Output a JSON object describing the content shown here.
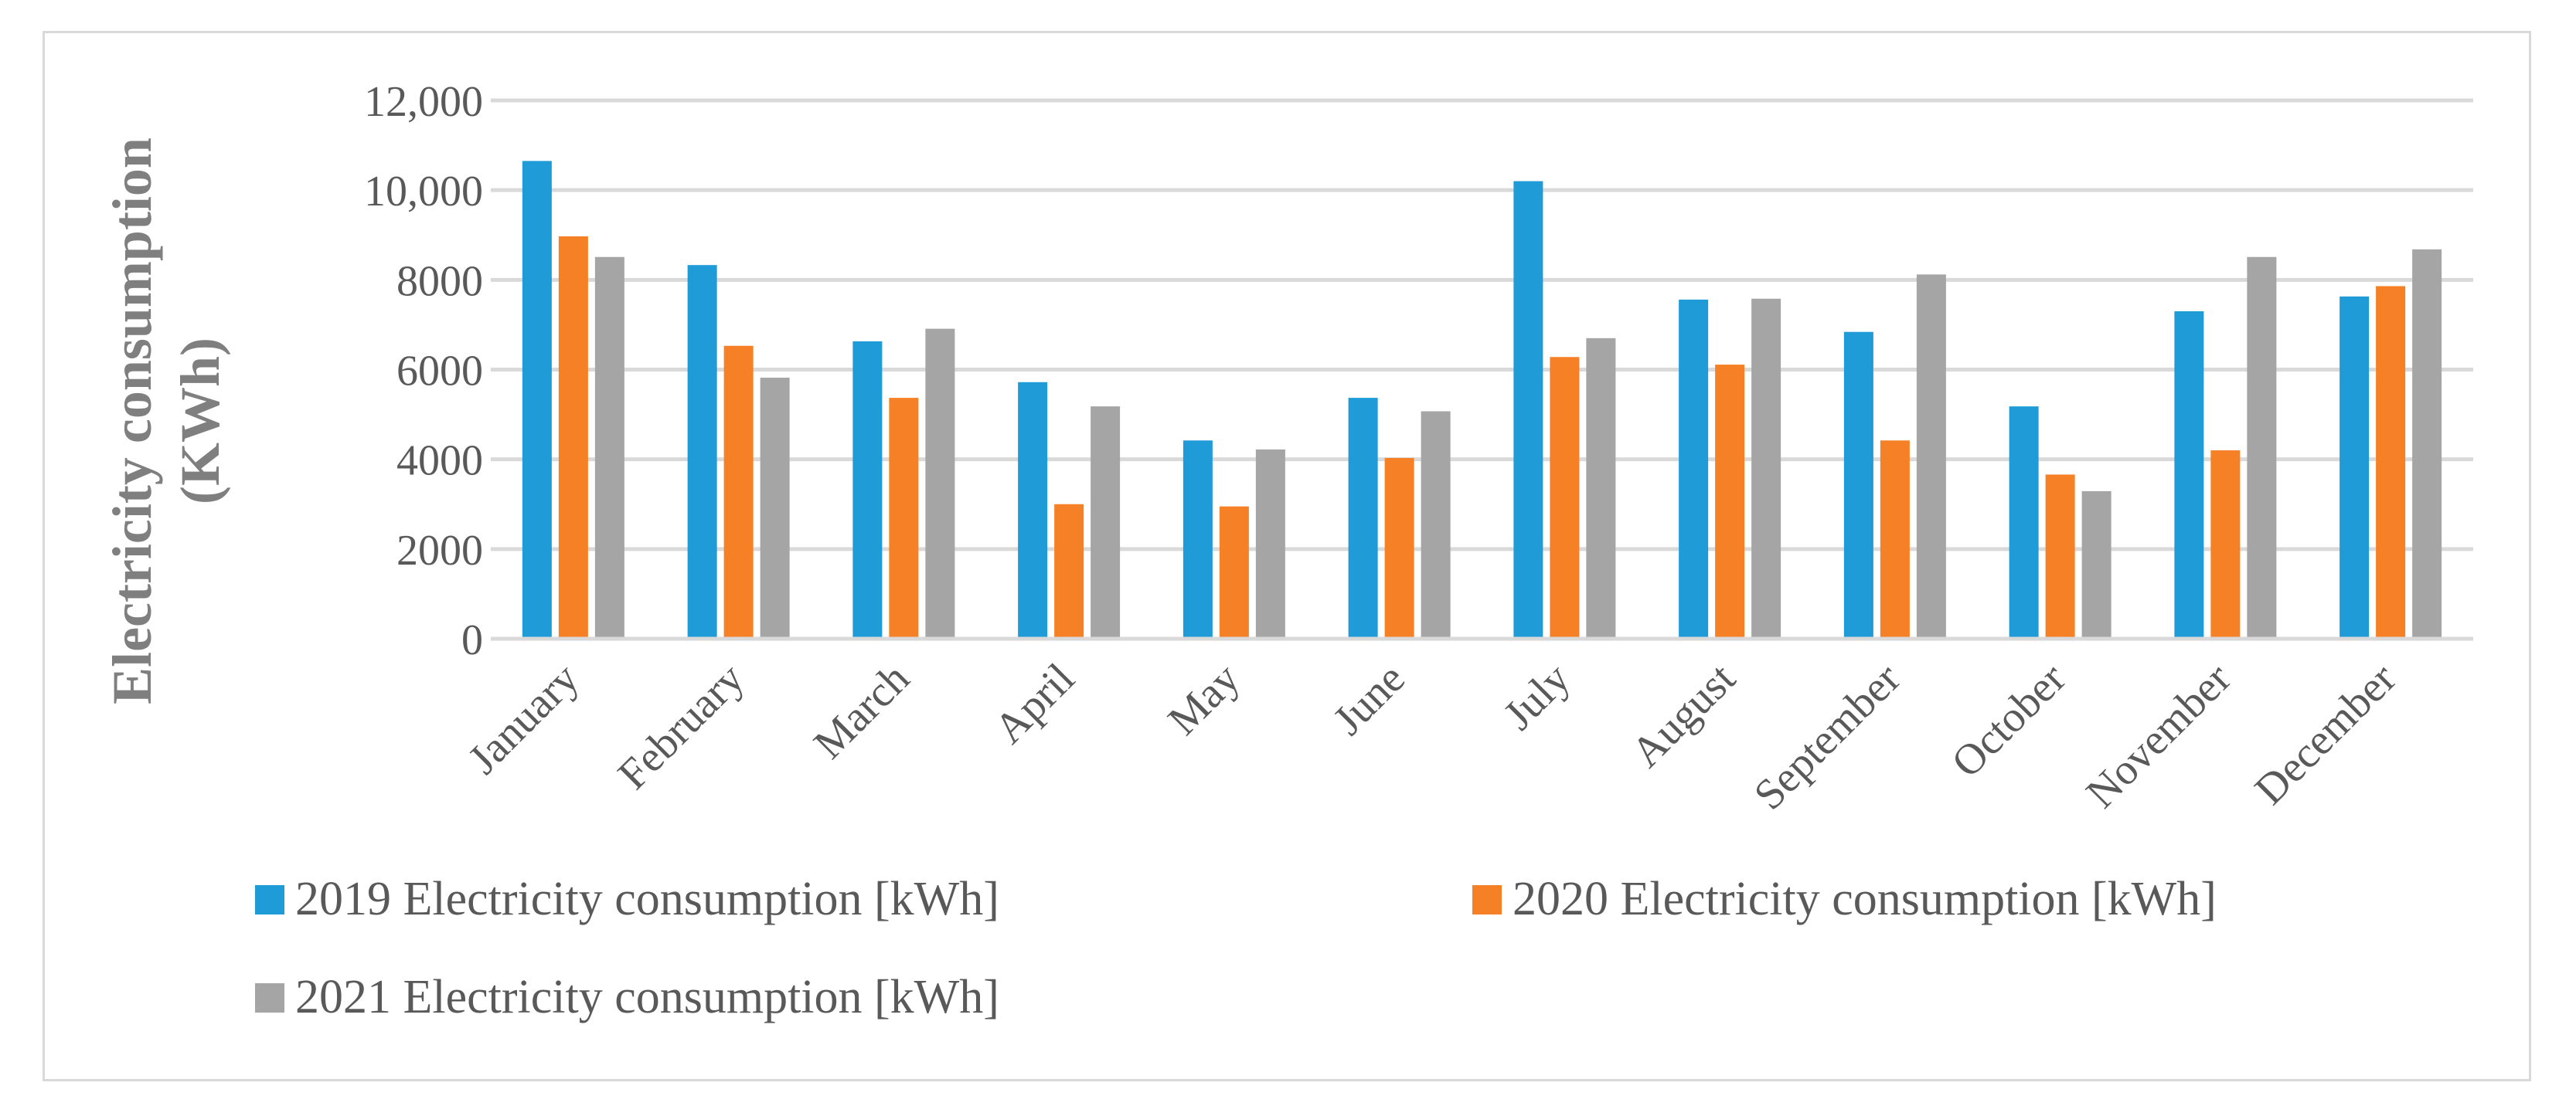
{
  "chart_data": {
    "type": "bar",
    "title": "",
    "xlabel": "",
    "ylabel": "Electricity consumption (KWh)",
    "ylabel_lines": [
      "Electricity consumption",
      "(KWh)"
    ],
    "ylim": [
      0,
      12000
    ],
    "y_ticks": [
      0,
      2000,
      4000,
      6000,
      8000,
      10000,
      12000
    ],
    "y_tick_labels": [
      "0",
      "2000",
      "4000",
      "6000",
      "8000",
      "10,000",
      "12,000"
    ],
    "grid": true,
    "legend_position": "bottom",
    "categories": [
      "January",
      "February",
      "March",
      "April",
      "May",
      "June",
      "July",
      "August",
      "September",
      "October",
      "November",
      "December"
    ],
    "series": [
      {
        "name": "2019 Electricity consumption [kWh]",
        "color": "#1f9bd7",
        "values": [
          10650,
          8330,
          6630,
          5720,
          4420,
          5370,
          10200,
          7560,
          6840,
          5180,
          7300,
          7630
        ]
      },
      {
        "name": "2020 Electricity consumption [kWh]",
        "color": "#f58025",
        "values": [
          8970,
          6530,
          5370,
          3000,
          2950,
          4030,
          6280,
          6110,
          4420,
          3660,
          4200,
          7860
        ]
      },
      {
        "name": "2021 Electricity consumption [kWh]",
        "color": "#a5a5a5",
        "values": [
          8510,
          5820,
          6910,
          5180,
          4220,
          5070,
          6700,
          7580,
          8120,
          3290,
          8510,
          8680
        ]
      }
    ]
  }
}
